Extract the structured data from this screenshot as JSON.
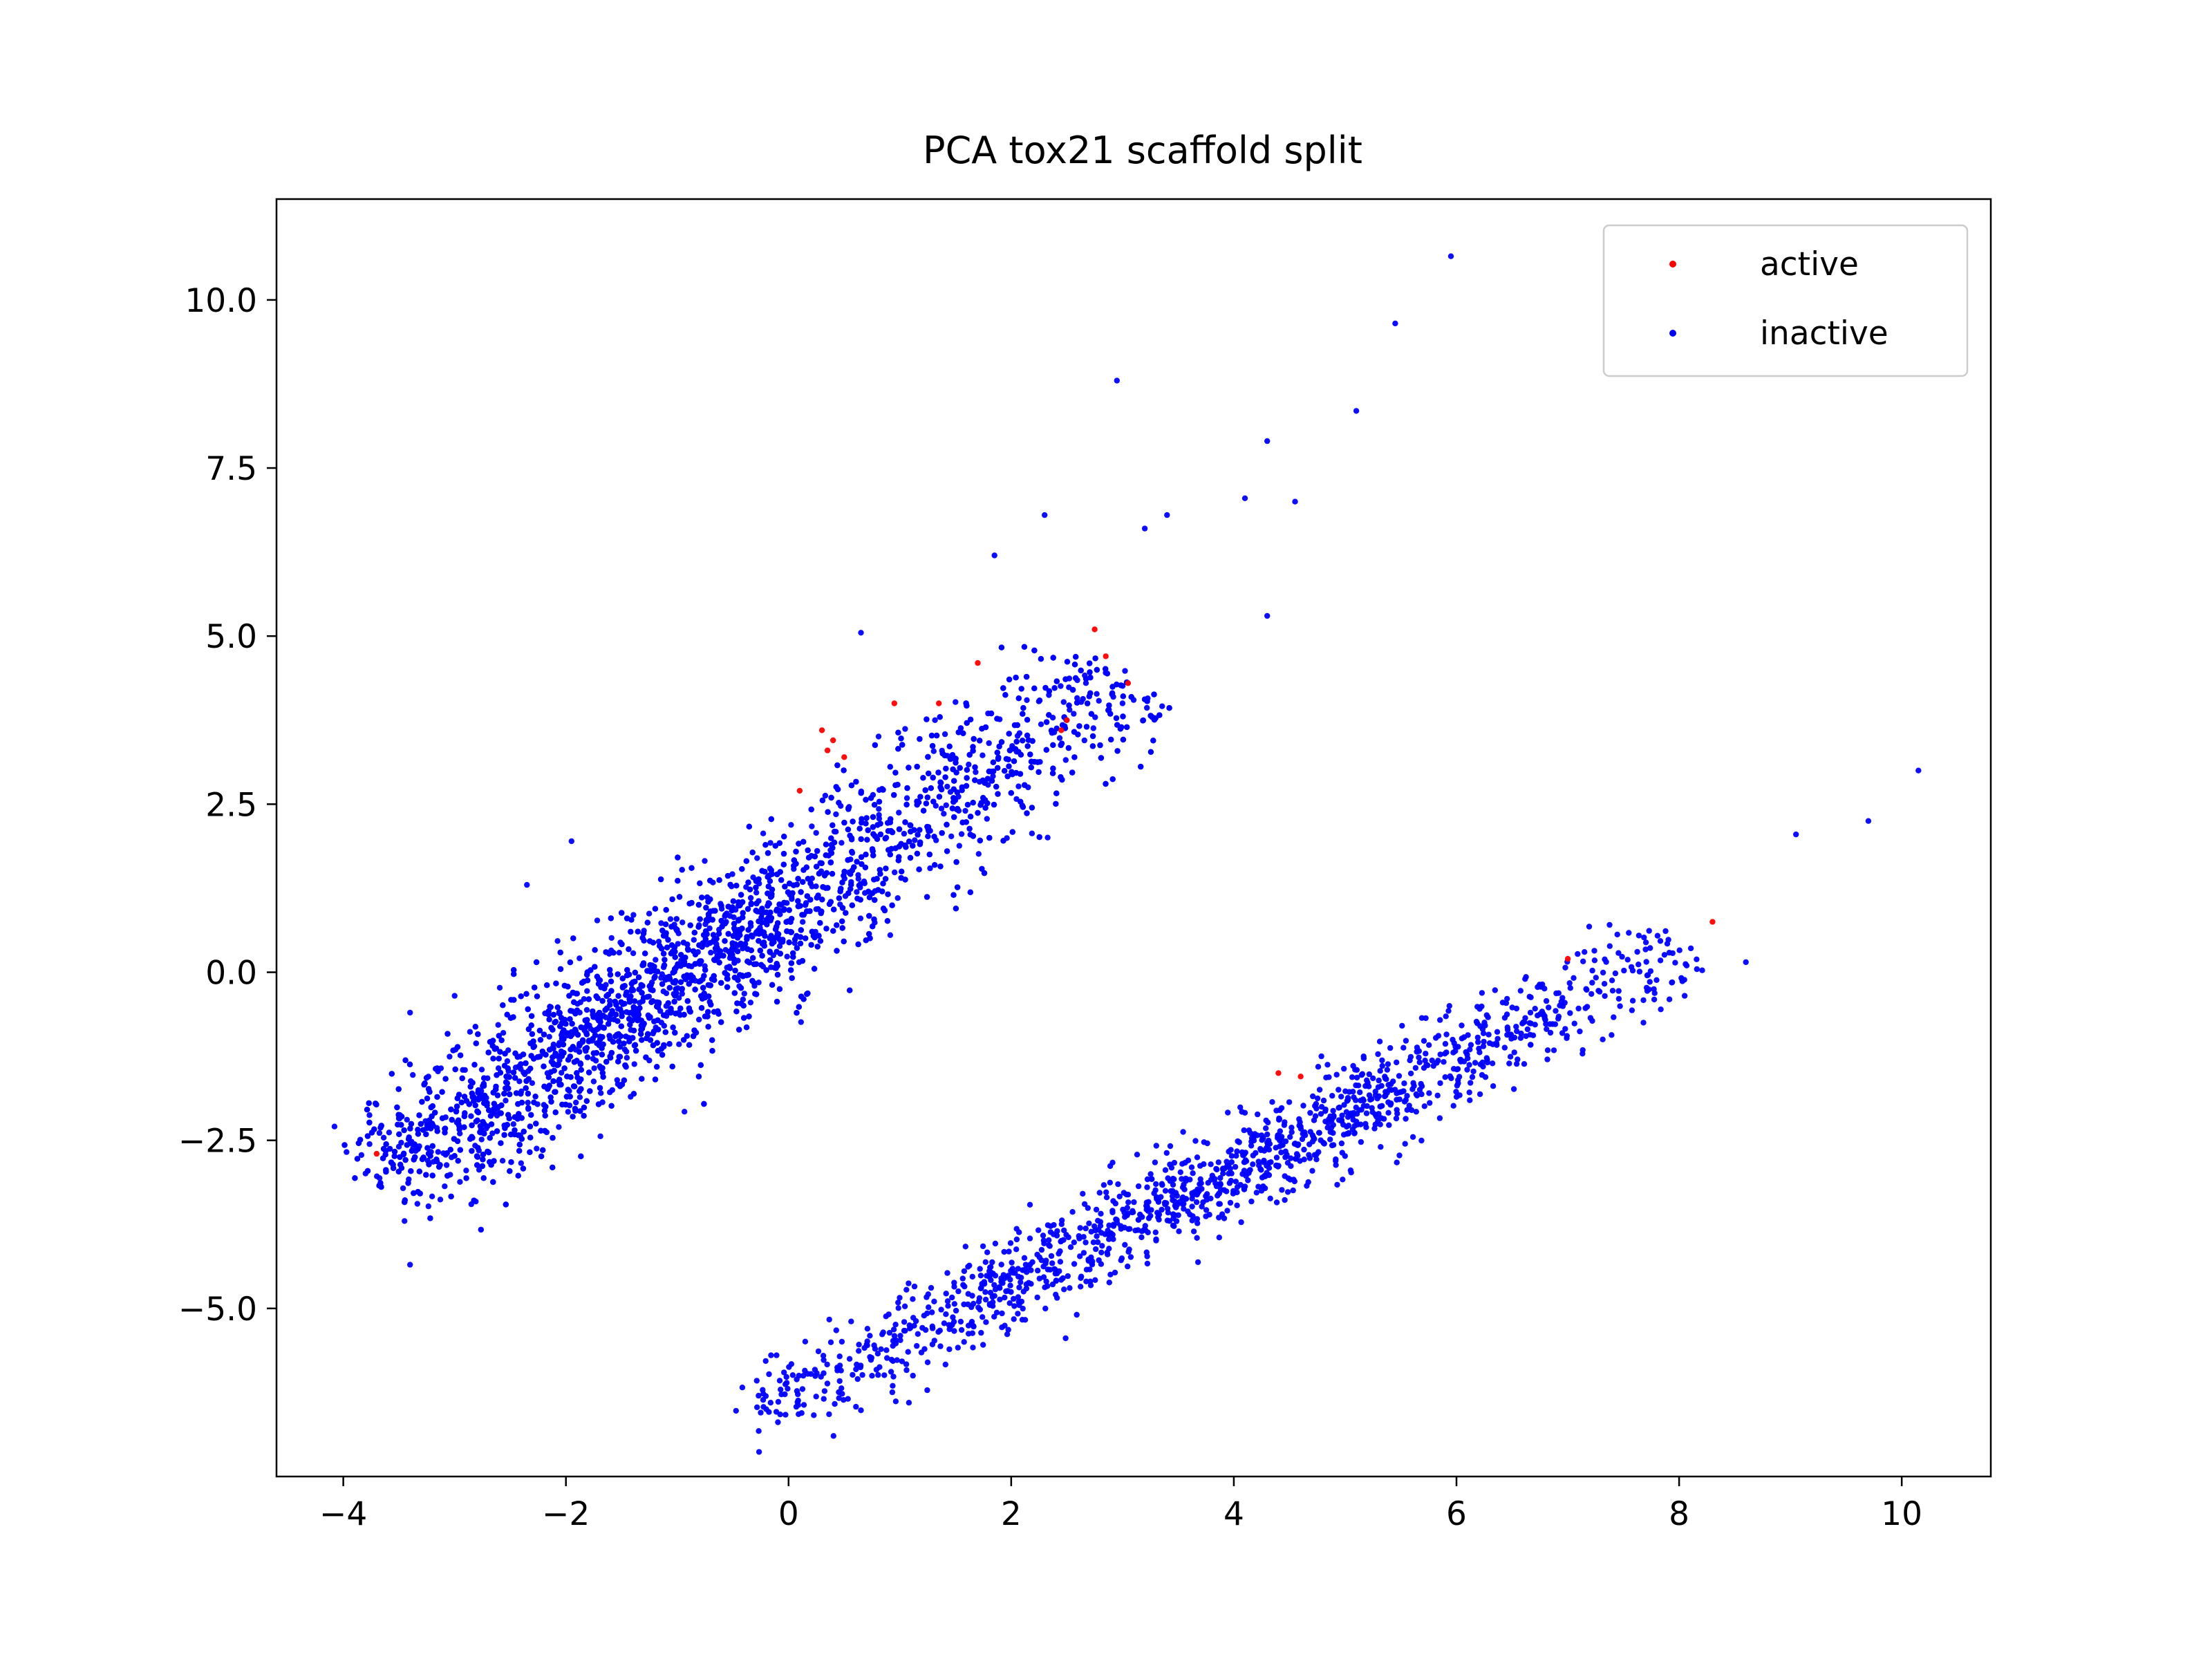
{
  "chart_data": {
    "type": "scatter",
    "title": "PCA tox21 scaffold split",
    "xlabel": "",
    "ylabel": "",
    "xlim": [
      -4.6,
      10.8
    ],
    "ylim": [
      -7.5,
      11.5
    ],
    "x_ticks": [
      -4,
      -2,
      0,
      2,
      4,
      6,
      8,
      10
    ],
    "x_tick_labels": [
      "−4",
      "−2",
      "0",
      "2",
      "4",
      "6",
      "8",
      "10"
    ],
    "y_ticks": [
      -5.0,
      -2.5,
      0.0,
      2.5,
      5.0,
      7.5,
      10.0
    ],
    "y_tick_labels": [
      "−5.0",
      "−2.5",
      "0.0",
      "2.5",
      "5.0",
      "7.5",
      "10.0"
    ],
    "grid": false,
    "legend_position": "upper right",
    "legend": [
      {
        "label": "active",
        "color": "#ff0000"
      },
      {
        "label": "inactive",
        "color": "#0000ff"
      }
    ],
    "series": [
      {
        "name": "active",
        "color": "#ff0000",
        "points": [
          [
            -3.7,
            -2.7
          ],
          [
            0.3,
            3.6
          ],
          [
            0.35,
            3.3
          ],
          [
            0.4,
            3.45
          ],
          [
            0.5,
            3.2
          ],
          [
            0.95,
            4.0
          ],
          [
            1.35,
            4.0
          ],
          [
            1.7,
            4.6
          ],
          [
            2.45,
            3.6
          ],
          [
            2.5,
            3.75
          ],
          [
            2.75,
            5.1
          ],
          [
            2.85,
            4.7
          ],
          [
            3.05,
            4.3
          ],
          [
            4.4,
            -1.5
          ],
          [
            4.6,
            -1.55
          ],
          [
            7.0,
            0.2
          ],
          [
            8.3,
            0.75
          ],
          [
            0.1,
            2.7
          ]
        ]
      },
      {
        "name": "inactive",
        "color": "#0000ff",
        "clusters": [
          {
            "n": 3600,
            "from": [
              -3.5,
              -2.9
            ],
            "to": [
              3.0,
              4.4
            ],
            "spread": 0.42,
            "density_center": 0.35
          },
          {
            "n": 1400,
            "from": [
              -0.25,
              -6.5
            ],
            "to": [
              8.0,
              0.4
            ],
            "spread": 0.28,
            "density_center": 0.5
          }
        ],
        "points": [
          [
            5.95,
            10.65
          ],
          [
            5.45,
            9.65
          ],
          [
            2.95,
            8.8
          ],
          [
            5.1,
            8.35
          ],
          [
            4.3,
            7.9
          ],
          [
            4.55,
            7.0
          ],
          [
            4.1,
            7.05
          ],
          [
            2.3,
            6.8
          ],
          [
            1.85,
            6.2
          ],
          [
            3.2,
            6.6
          ],
          [
            3.4,
            6.8
          ],
          [
            0.65,
            5.05
          ],
          [
            10.15,
            3.0
          ],
          [
            9.7,
            2.25
          ],
          [
            9.05,
            2.05
          ],
          [
            8.6,
            0.15
          ],
          [
            8.05,
            -0.35
          ],
          [
            -3.4,
            -4.35
          ],
          [
            -3.45,
            -3.7
          ],
          [
            -2.85,
            -3.45
          ],
          [
            -1.95,
            1.95
          ],
          [
            -2.35,
            1.3
          ],
          [
            -3.0,
            -0.35
          ],
          [
            -3.4,
            -0.6
          ],
          [
            -0.25,
            -6.55
          ],
          [
            -0.2,
            -6.5
          ],
          [
            4.3,
            5.3
          ],
          [
            3.0,
            4.0
          ],
          [
            3.1,
            4.05
          ]
        ]
      }
    ]
  }
}
